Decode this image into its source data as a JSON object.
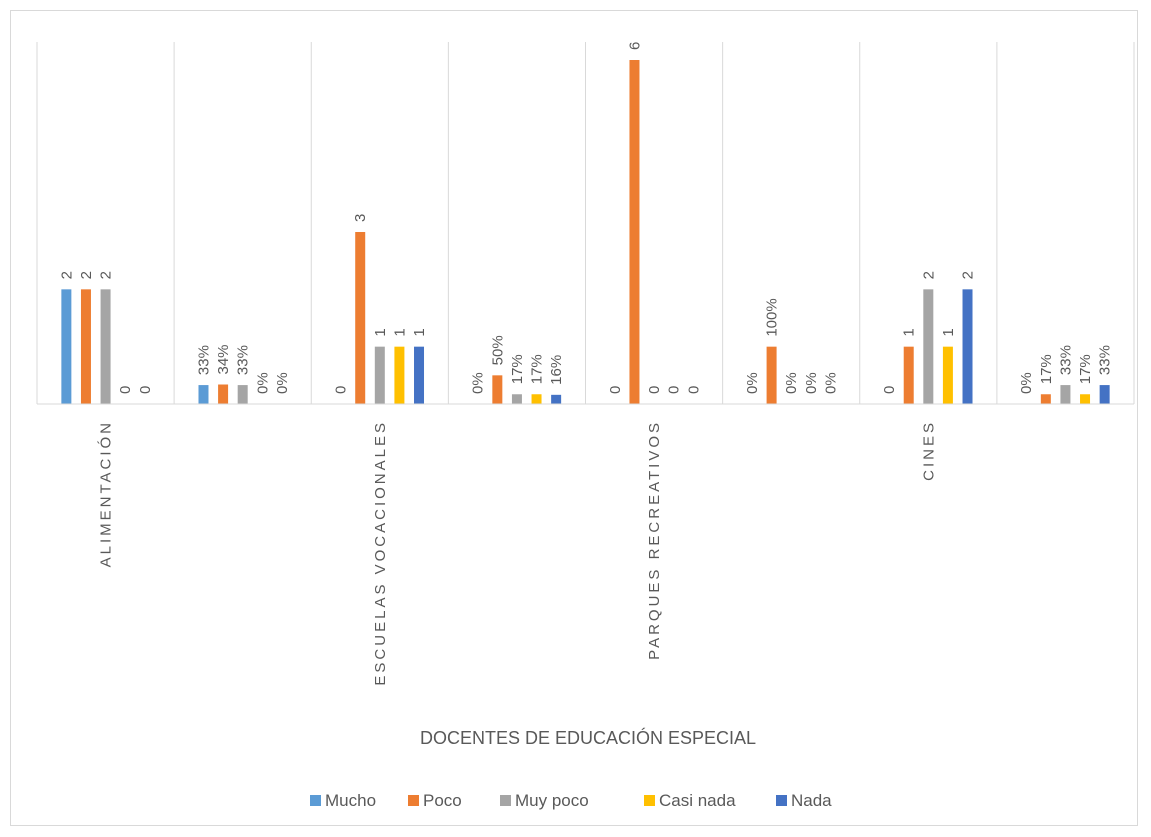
{
  "chart_data": {
    "type": "bar",
    "title": "",
    "xlabel": "DOCENTES DE EDUCACIÓN ESPECIAL",
    "ylabel": "",
    "ylim": [
      0,
      6.4
    ],
    "grid": "vertical separators between groups",
    "legend_position": "bottom",
    "series": [
      {
        "name": "Mucho",
        "color": "#5b9bd5"
      },
      {
        "name": "Poco",
        "color": "#ed7d31"
      },
      {
        "name": "Muy poco",
        "color": "#a5a5a5"
      },
      {
        "name": "Casi nada",
        "color": "#ffc000"
      },
      {
        "name": "Nada",
        "color": "#4472c4"
      }
    ],
    "groups": [
      {
        "category": "ALIMENTACIÓN",
        "values": [
          2,
          2,
          2,
          0,
          0
        ],
        "labels": [
          "2",
          "2",
          "2",
          "0",
          "0"
        ]
      },
      {
        "category": "",
        "values": [
          0.33,
          0.34,
          0.33,
          0,
          0
        ],
        "labels": [
          "33%",
          "34%",
          "33%",
          "0%",
          "0%"
        ]
      },
      {
        "category": "ESCUELAS VOCACIONALES",
        "values": [
          0,
          3,
          1,
          1,
          1
        ],
        "labels": [
          "0",
          "3",
          "1",
          "1",
          "1"
        ]
      },
      {
        "category": "",
        "values": [
          0,
          0.5,
          0.17,
          0.17,
          0.16
        ],
        "labels": [
          "0%",
          "50%",
          "17%",
          "17%",
          "16%"
        ]
      },
      {
        "category": "PARQUES RECREATIVOS",
        "values": [
          0,
          6,
          0,
          0,
          0
        ],
        "labels": [
          "0",
          "6",
          "0",
          "0",
          "0"
        ]
      },
      {
        "category": "",
        "values": [
          0,
          1,
          0,
          0,
          0
        ],
        "labels": [
          "0%",
          "100%",
          "0%",
          "0%",
          "0%"
        ]
      },
      {
        "category": "CINES",
        "values": [
          0,
          1,
          2,
          1,
          2
        ],
        "labels": [
          "0",
          "1",
          "2",
          "1",
          "2"
        ]
      },
      {
        "category": "",
        "values": [
          0,
          0.17,
          0.33,
          0.17,
          0.33
        ],
        "labels": [
          "0%",
          "17%",
          "33%",
          "17%",
          "33%"
        ]
      }
    ]
  }
}
